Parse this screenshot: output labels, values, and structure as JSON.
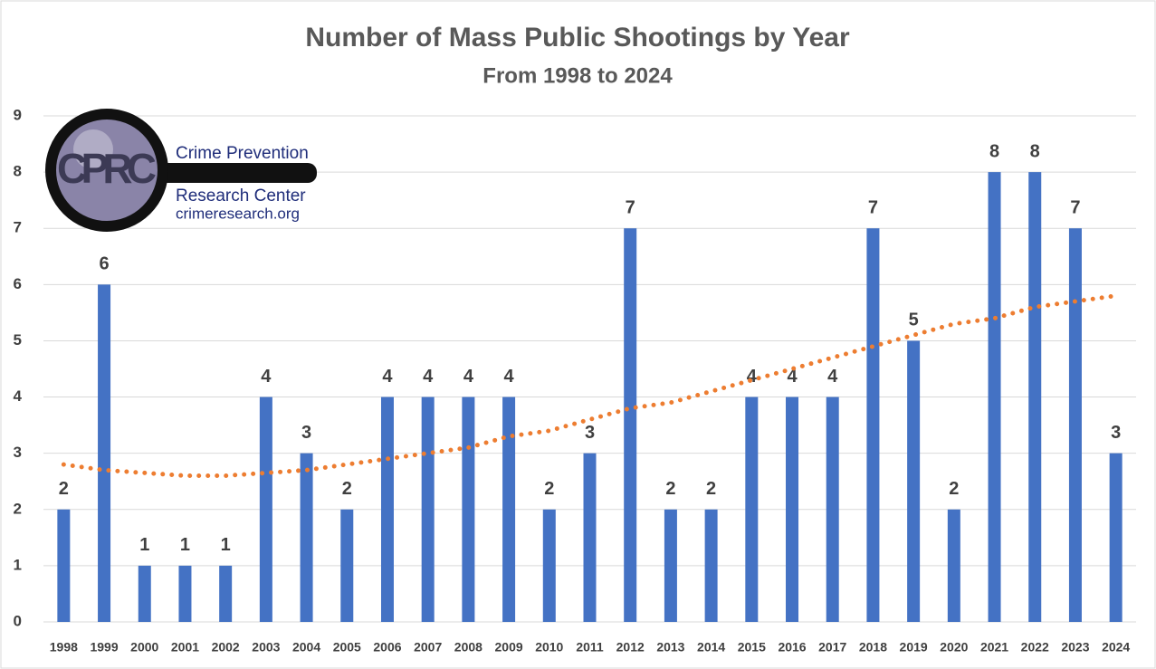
{
  "chart_data": {
    "type": "bar",
    "title": "Number of Mass Public Shootings by Year",
    "subtitle": "From 1998 to 2024",
    "categories": [
      "1998",
      "1999",
      "2000",
      "2001",
      "2002",
      "2003",
      "2004",
      "2005",
      "2006",
      "2007",
      "2008",
      "2009",
      "2010",
      "2011",
      "2012",
      "2013",
      "2014",
      "2015",
      "2016",
      "2017",
      "2018",
      "2019",
      "2020",
      "2021",
      "2022",
      "2023",
      "2024"
    ],
    "series": [
      {
        "type": "bar",
        "color": "#4472c4",
        "data_labels": true,
        "values": [
          2,
          6,
          1,
          1,
          1,
          4,
          3,
          2,
          4,
          4,
          4,
          4,
          2,
          3,
          7,
          2,
          2,
          4,
          4,
          4,
          7,
          5,
          2,
          8,
          8,
          7,
          3
        ]
      },
      {
        "type": "line",
        "color": "#ed7d31",
        "style": "dotted",
        "values": [
          2.8,
          2.7,
          2.65,
          2.6,
          2.6,
          2.65,
          2.7,
          2.8,
          2.9,
          3.0,
          3.1,
          3.3,
          3.4,
          3.6,
          3.8,
          3.9,
          4.1,
          4.3,
          4.5,
          4.7,
          4.9,
          5.1,
          5.3,
          5.4,
          5.6,
          5.7,
          5.8
        ]
      }
    ],
    "ylim": [
      0,
      9
    ],
    "yticks": [
      0,
      1,
      2,
      3,
      4,
      5,
      6,
      7,
      8,
      9
    ],
    "grid": true,
    "logo": {
      "mark": "CPRC",
      "lines": [
        "Crime Prevention",
        "Research Center",
        "crimeresearch.org"
      ]
    }
  }
}
